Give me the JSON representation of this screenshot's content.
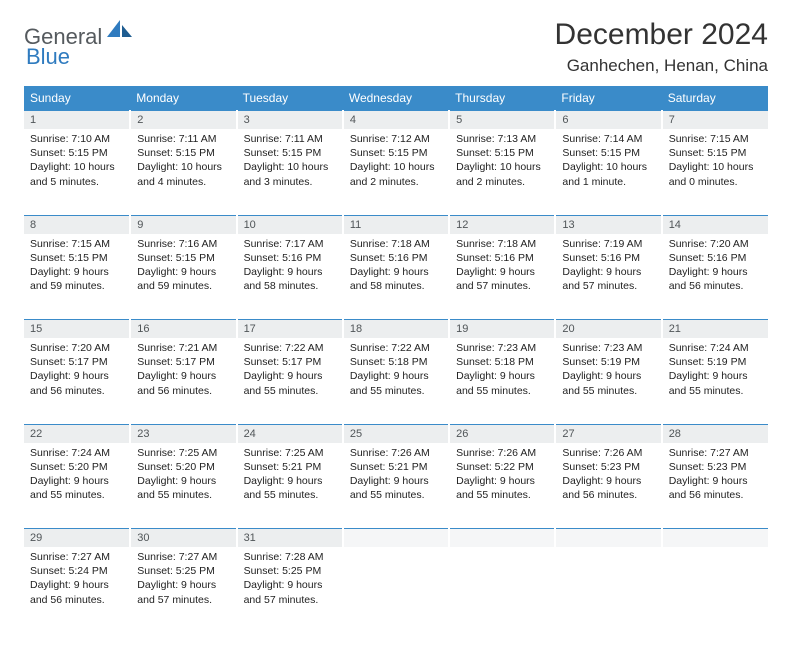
{
  "brand": {
    "general": "General",
    "blue": "Blue"
  },
  "header": {
    "title": "December 2024",
    "location": "Ganhechen, Henan, China"
  },
  "colors": {
    "header_bg": "#3a8bc9",
    "header_text": "#ffffff",
    "daynum_bg": "#eceeef",
    "daynum_text": "#505558",
    "rule": "#3a8bc9",
    "logo_gray": "#555a5e",
    "logo_blue": "#2f7bbf"
  },
  "fonts": {
    "title_size_pt": 22,
    "location_size_pt": 13,
    "dayheader_size_pt": 9,
    "daynum_size_pt": 8,
    "body_size_pt": 8
  },
  "days": [
    "Sunday",
    "Monday",
    "Tuesday",
    "Wednesday",
    "Thursday",
    "Friday",
    "Saturday"
  ],
  "weeks": [
    [
      {
        "n": "1",
        "sr": "7:10 AM",
        "ss": "5:15 PM",
        "dl": "10 hours and 5 minutes."
      },
      {
        "n": "2",
        "sr": "7:11 AM",
        "ss": "5:15 PM",
        "dl": "10 hours and 4 minutes."
      },
      {
        "n": "3",
        "sr": "7:11 AM",
        "ss": "5:15 PM",
        "dl": "10 hours and 3 minutes."
      },
      {
        "n": "4",
        "sr": "7:12 AM",
        "ss": "5:15 PM",
        "dl": "10 hours and 2 minutes."
      },
      {
        "n": "5",
        "sr": "7:13 AM",
        "ss": "5:15 PM",
        "dl": "10 hours and 2 minutes."
      },
      {
        "n": "6",
        "sr": "7:14 AM",
        "ss": "5:15 PM",
        "dl": "10 hours and 1 minute."
      },
      {
        "n": "7",
        "sr": "7:15 AM",
        "ss": "5:15 PM",
        "dl": "10 hours and 0 minutes."
      }
    ],
    [
      {
        "n": "8",
        "sr": "7:15 AM",
        "ss": "5:15 PM",
        "dl": "9 hours and 59 minutes."
      },
      {
        "n": "9",
        "sr": "7:16 AM",
        "ss": "5:15 PM",
        "dl": "9 hours and 59 minutes."
      },
      {
        "n": "10",
        "sr": "7:17 AM",
        "ss": "5:16 PM",
        "dl": "9 hours and 58 minutes."
      },
      {
        "n": "11",
        "sr": "7:18 AM",
        "ss": "5:16 PM",
        "dl": "9 hours and 58 minutes."
      },
      {
        "n": "12",
        "sr": "7:18 AM",
        "ss": "5:16 PM",
        "dl": "9 hours and 57 minutes."
      },
      {
        "n": "13",
        "sr": "7:19 AM",
        "ss": "5:16 PM",
        "dl": "9 hours and 57 minutes."
      },
      {
        "n": "14",
        "sr": "7:20 AM",
        "ss": "5:16 PM",
        "dl": "9 hours and 56 minutes."
      }
    ],
    [
      {
        "n": "15",
        "sr": "7:20 AM",
        "ss": "5:17 PM",
        "dl": "9 hours and 56 minutes."
      },
      {
        "n": "16",
        "sr": "7:21 AM",
        "ss": "5:17 PM",
        "dl": "9 hours and 56 minutes."
      },
      {
        "n": "17",
        "sr": "7:22 AM",
        "ss": "5:17 PM",
        "dl": "9 hours and 55 minutes."
      },
      {
        "n": "18",
        "sr": "7:22 AM",
        "ss": "5:18 PM",
        "dl": "9 hours and 55 minutes."
      },
      {
        "n": "19",
        "sr": "7:23 AM",
        "ss": "5:18 PM",
        "dl": "9 hours and 55 minutes."
      },
      {
        "n": "20",
        "sr": "7:23 AM",
        "ss": "5:19 PM",
        "dl": "9 hours and 55 minutes."
      },
      {
        "n": "21",
        "sr": "7:24 AM",
        "ss": "5:19 PM",
        "dl": "9 hours and 55 minutes."
      }
    ],
    [
      {
        "n": "22",
        "sr": "7:24 AM",
        "ss": "5:20 PM",
        "dl": "9 hours and 55 minutes."
      },
      {
        "n": "23",
        "sr": "7:25 AM",
        "ss": "5:20 PM",
        "dl": "9 hours and 55 minutes."
      },
      {
        "n": "24",
        "sr": "7:25 AM",
        "ss": "5:21 PM",
        "dl": "9 hours and 55 minutes."
      },
      {
        "n": "25",
        "sr": "7:26 AM",
        "ss": "5:21 PM",
        "dl": "9 hours and 55 minutes."
      },
      {
        "n": "26",
        "sr": "7:26 AM",
        "ss": "5:22 PM",
        "dl": "9 hours and 55 minutes."
      },
      {
        "n": "27",
        "sr": "7:26 AM",
        "ss": "5:23 PM",
        "dl": "9 hours and 56 minutes."
      },
      {
        "n": "28",
        "sr": "7:27 AM",
        "ss": "5:23 PM",
        "dl": "9 hours and 56 minutes."
      }
    ],
    [
      {
        "n": "29",
        "sr": "7:27 AM",
        "ss": "5:24 PM",
        "dl": "9 hours and 56 minutes."
      },
      {
        "n": "30",
        "sr": "7:27 AM",
        "ss": "5:25 PM",
        "dl": "9 hours and 57 minutes."
      },
      {
        "n": "31",
        "sr": "7:28 AM",
        "ss": "5:25 PM",
        "dl": "9 hours and 57 minutes."
      },
      null,
      null,
      null,
      null
    ]
  ],
  "labels": {
    "sunrise": "Sunrise:",
    "sunset": "Sunset:",
    "daylight": "Daylight:"
  }
}
